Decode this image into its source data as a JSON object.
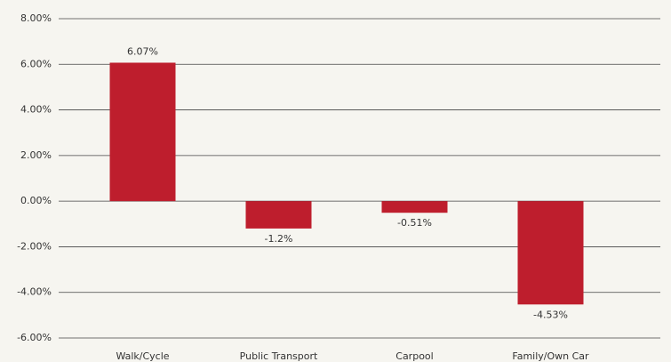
{
  "chart_data": {
    "type": "bar",
    "categories": [
      "Walk/Cycle",
      "Public Transport",
      "Carpool",
      "Family/Own Car"
    ],
    "values": [
      6.07,
      -1.2,
      -0.51,
      -4.53
    ],
    "value_labels": [
      "6.07%",
      "-1.2%",
      "-0.51%",
      "-4.53%"
    ],
    "color": "#be1e2d",
    "ylim": [
      -6,
      8
    ],
    "yticks": [
      {
        "value": -6,
        "label": "-6.00%"
      },
      {
        "value": -4,
        "label": "-4.00%"
      },
      {
        "value": -2,
        "label": "-2.00%"
      },
      {
        "value": 0,
        "label": "0.00%"
      },
      {
        "value": 2,
        "label": "2.00%"
      },
      {
        "value": 4,
        "label": "4.00%"
      },
      {
        "value": 6,
        "label": "6.00%"
      },
      {
        "value": 8,
        "label": "8.00%"
      }
    ],
    "grid": true
  }
}
